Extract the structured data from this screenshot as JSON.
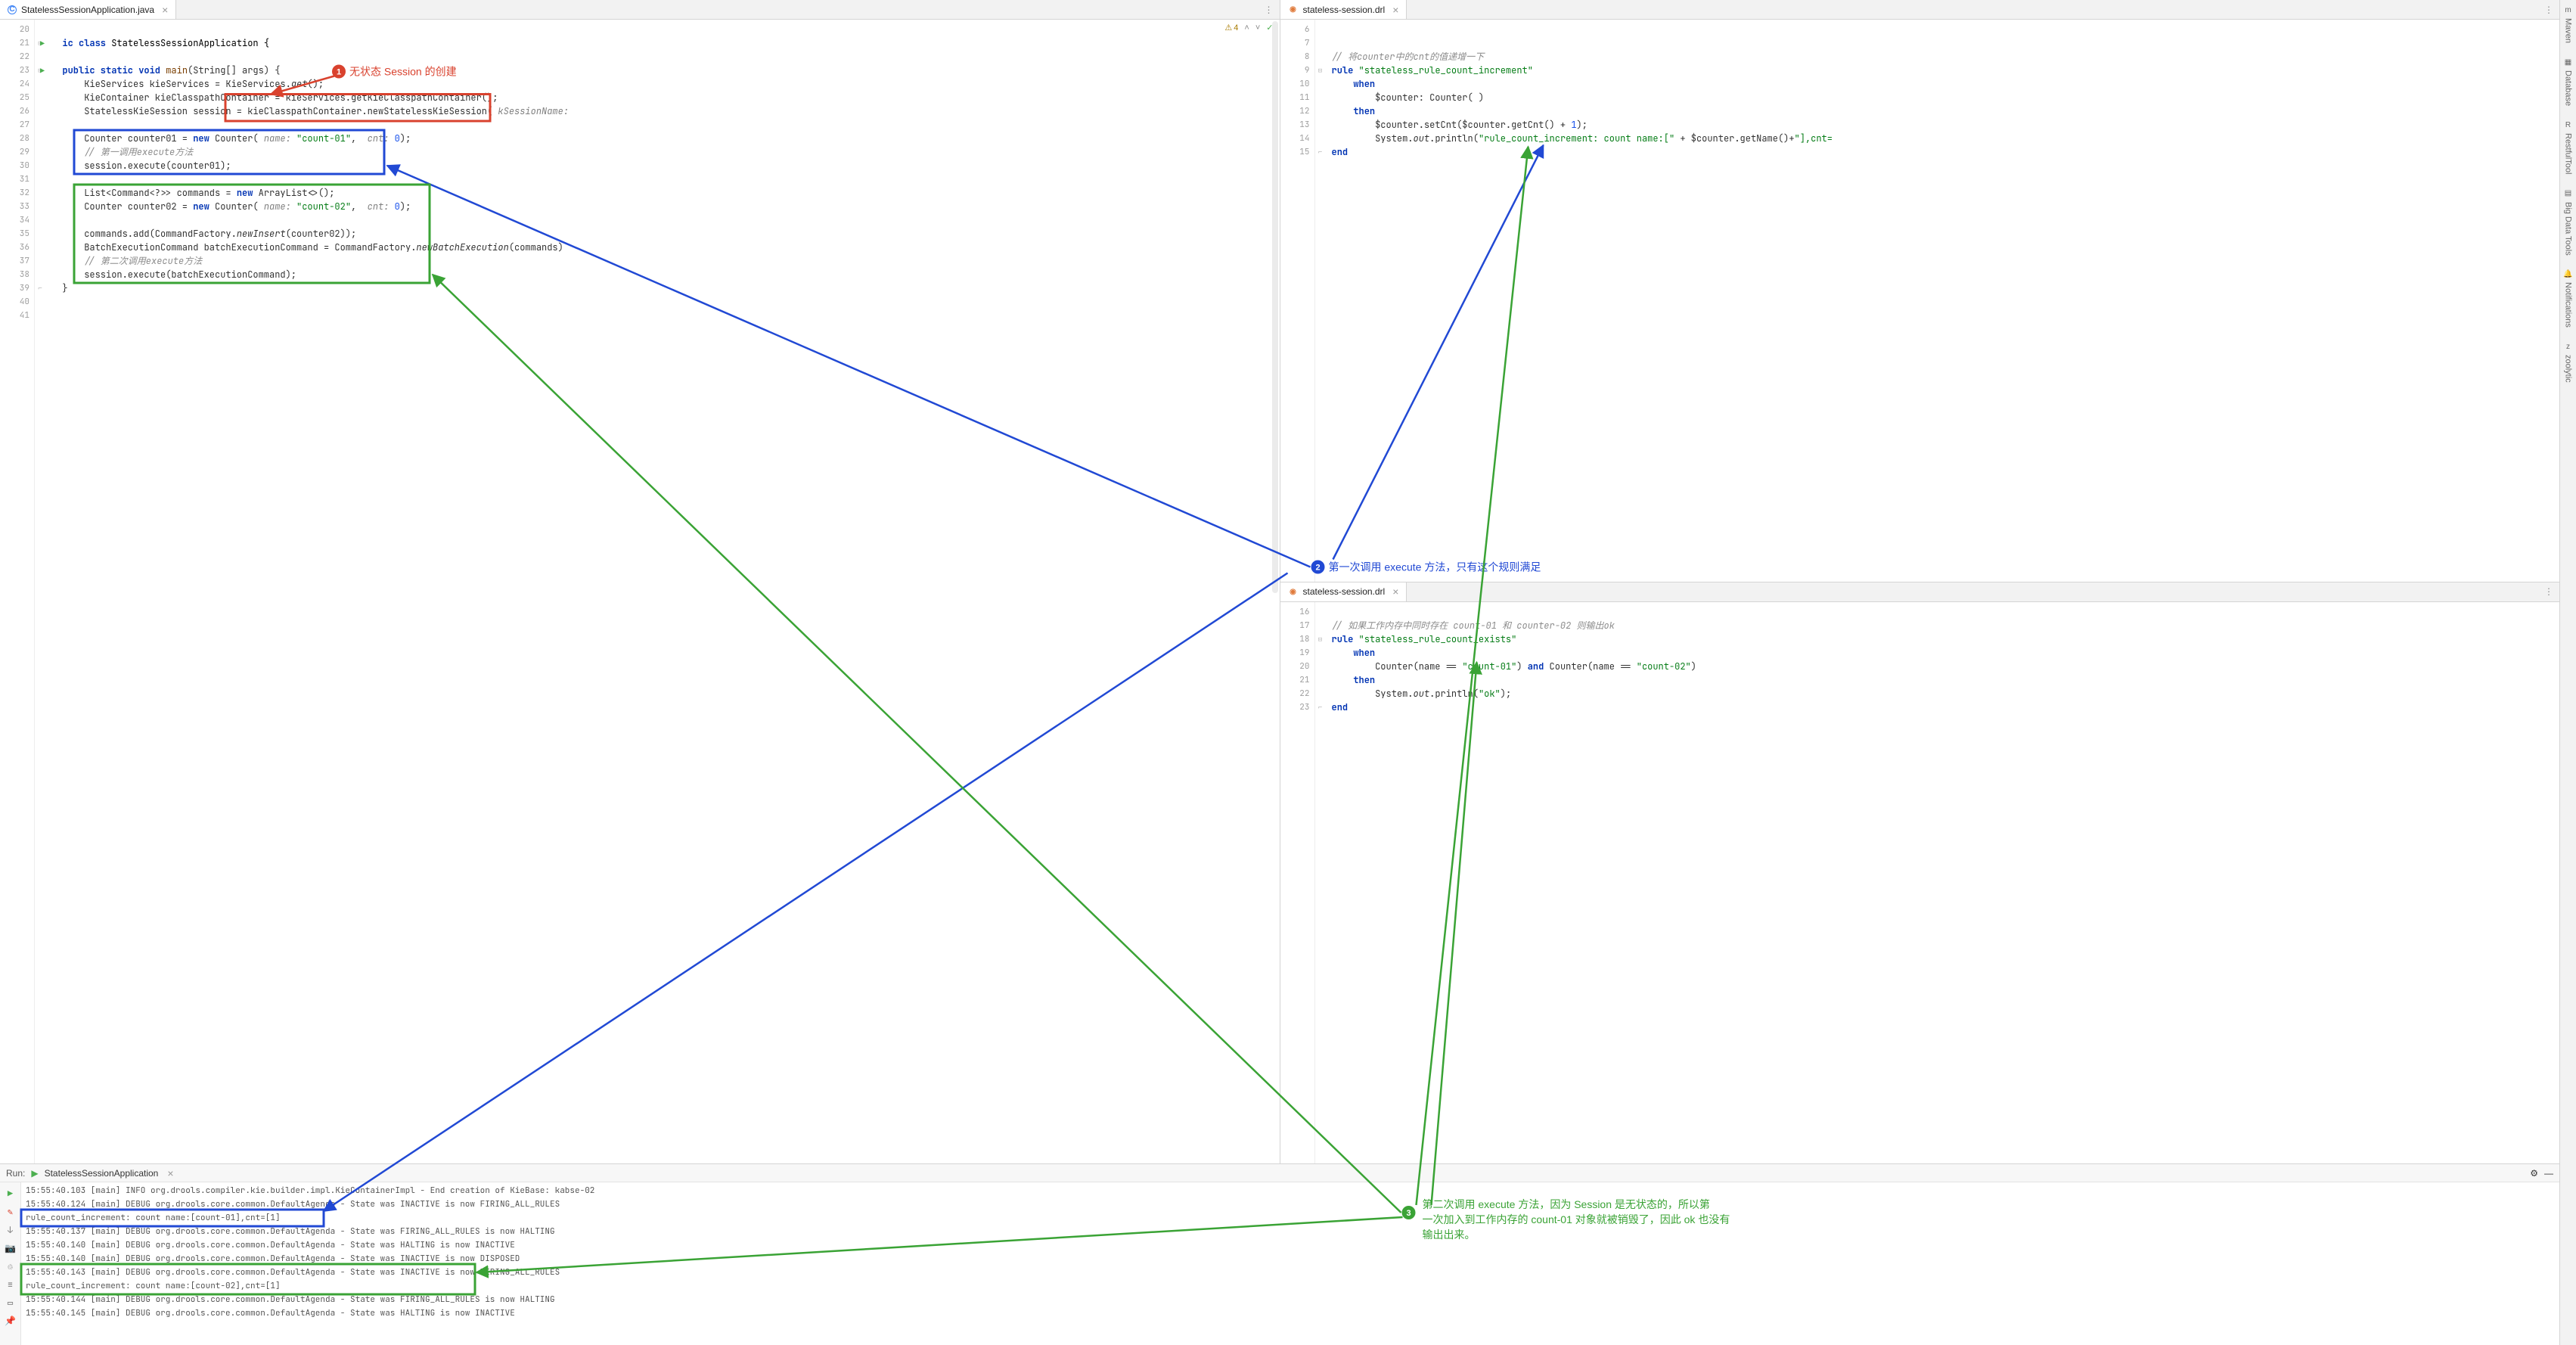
{
  "colors": {
    "annot_red": "#d9422e",
    "annot_blue": "#2149d4",
    "annot_green": "#3aa335",
    "keyword": "#0033b3",
    "string": "#067d17",
    "number": "#1750eb",
    "comment": "#8c8c8c"
  },
  "left_editor": {
    "tab_icon_color": "#3b82f6",
    "tab_icon_letter": "C",
    "tab_title": "StatelessSessionApplication.java",
    "inspections": {
      "warn_count": "4"
    },
    "gutter_start": 20,
    "gutter_end": 41,
    "run_arrows_at": [
      21,
      23
    ],
    "fold_minus_at": [
      21,
      23
    ],
    "fold_end_at": [
      39
    ],
    "lines": {
      "21": [
        {
          "t": "  ",
          "c": ""
        },
        {
          "t": "ic class ",
          "c": "kw"
        },
        {
          "t": "StatelessSessionApplication {",
          "c": "type"
        }
      ],
      "23": [
        {
          "t": "  ",
          "c": ""
        },
        {
          "t": "public static void ",
          "c": "kw"
        },
        {
          "t": "main",
          "c": "fn"
        },
        {
          "t": "(String[] args) {",
          "c": ""
        }
      ],
      "24": [
        {
          "t": "      KieServices kieServices = KieServices.",
          "c": ""
        },
        {
          "t": "get",
          "c": "static-call ital"
        },
        {
          "t": "();",
          "c": ""
        }
      ],
      "25": [
        {
          "t": "      KieContainer kieClasspathContainer = kieServices.getKieClasspathContainer();",
          "c": ""
        }
      ],
      "26": [
        {
          "t": "      StatelessKieSession session = ",
          "c": ""
        },
        {
          "t": "kieClasspathContainer.newStatelessKieSession(",
          "c": ""
        },
        {
          "t": " kSessionName:",
          "c": "param"
        }
      ],
      "28": [
        {
          "t": "      Counter counter01 = ",
          "c": ""
        },
        {
          "t": "new ",
          "c": "kw"
        },
        {
          "t": "Counter( ",
          "c": ""
        },
        {
          "t": "name: ",
          "c": "param"
        },
        {
          "t": "\"count-01\"",
          "c": "str"
        },
        {
          "t": ",  ",
          "c": ""
        },
        {
          "t": "cnt: ",
          "c": "param"
        },
        {
          "t": "0",
          "c": "num"
        },
        {
          "t": ");",
          "c": ""
        }
      ],
      "29": [
        {
          "t": "      ",
          "c": ""
        },
        {
          "t": "// 第一调用execute方法",
          "c": "cmt"
        }
      ],
      "30": [
        {
          "t": "      session.execute(counter01);",
          "c": ""
        }
      ],
      "32": [
        {
          "t": "      List<Command<?>> commands = ",
          "c": ""
        },
        {
          "t": "new ",
          "c": "kw"
        },
        {
          "t": "ArrayList<>();",
          "c": ""
        }
      ],
      "33": [
        {
          "t": "      Counter counter02 = ",
          "c": ""
        },
        {
          "t": "new ",
          "c": "kw"
        },
        {
          "t": "Counter( ",
          "c": ""
        },
        {
          "t": "name: ",
          "c": "param"
        },
        {
          "t": "\"count-02\"",
          "c": "str"
        },
        {
          "t": ",  ",
          "c": ""
        },
        {
          "t": "cnt: ",
          "c": "param"
        },
        {
          "t": "0",
          "c": "num"
        },
        {
          "t": ");",
          "c": ""
        }
      ],
      "35": [
        {
          "t": "      commands.add(CommandFactory.",
          "c": ""
        },
        {
          "t": "newInsert",
          "c": "static-call ital"
        },
        {
          "t": "(counter02));",
          "c": ""
        }
      ],
      "36": [
        {
          "t": "      BatchExecutionCommand batchExecutionCommand = CommandFactory.",
          "c": ""
        },
        {
          "t": "newBatchExecution",
          "c": "static-call ital"
        },
        {
          "t": "(commands)",
          "c": ""
        }
      ],
      "37": [
        {
          "t": "      ",
          "c": ""
        },
        {
          "t": "// 第二次调用execute方法",
          "c": "cmt"
        }
      ],
      "38": [
        {
          "t": "      session.execute(batchExecutionCommand);",
          "c": ""
        }
      ],
      "39": [
        {
          "t": "  }",
          "c": ""
        }
      ]
    }
  },
  "right_top": {
    "tab_title": "stateless-session.drl",
    "gutter_start": 6,
    "gutter_end": 15,
    "lines": {
      "8": [
        {
          "t": "// 将counter中的cnt的值递增一下",
          "c": "cmt"
        }
      ],
      "9": [
        {
          "t": "rule ",
          "c": "kw"
        },
        {
          "t": "\"stateless_rule_count_increment\"",
          "c": "str"
        }
      ],
      "10": [
        {
          "t": "    ",
          "c": ""
        },
        {
          "t": "when",
          "c": "kw"
        }
      ],
      "11": [
        {
          "t": "        $counter: Counter( )",
          "c": ""
        }
      ],
      "12": [
        {
          "t": "    ",
          "c": ""
        },
        {
          "t": "then",
          "c": "kw"
        }
      ],
      "13": [
        {
          "t": "        $counter.setCnt($counter.getCnt() + ",
          "c": ""
        },
        {
          "t": "1",
          "c": "num"
        },
        {
          "t": ");",
          "c": ""
        }
      ],
      "14": [
        {
          "t": "        System.",
          "c": ""
        },
        {
          "t": "out",
          "c": "ital"
        },
        {
          "t": ".println(",
          "c": ""
        },
        {
          "t": "\"rule_count_increment: count name:[\"",
          "c": "str"
        },
        {
          "t": " + $counter.getName()+",
          "c": ""
        },
        {
          "t": "\"],cnt=",
          "c": "str"
        }
      ],
      "15": [
        {
          "t": "end",
          "c": "kw"
        }
      ]
    }
  },
  "right_bottom": {
    "tab_title": "stateless-session.drl",
    "gutter_start": 16,
    "gutter_end": 23,
    "lines": {
      "17": [
        {
          "t": "// 如果工作内存中同时存在 count-01 和 counter-02 则输出ok",
          "c": "cmt"
        }
      ],
      "18": [
        {
          "t": "rule ",
          "c": "kw"
        },
        {
          "t": "\"stateless_rule_count_exists\"",
          "c": "str"
        }
      ],
      "19": [
        {
          "t": "    ",
          "c": ""
        },
        {
          "t": "when",
          "c": "kw"
        }
      ],
      "20": [
        {
          "t": "        Counter(name == ",
          "c": ""
        },
        {
          "t": "\"count-01\"",
          "c": "str"
        },
        {
          "t": ") ",
          "c": ""
        },
        {
          "t": "and",
          "c": "kw"
        },
        {
          "t": " Counter(name == ",
          "c": ""
        },
        {
          "t": "\"count-02\"",
          "c": "str"
        },
        {
          "t": ")",
          "c": ""
        }
      ],
      "21": [
        {
          "t": "    ",
          "c": ""
        },
        {
          "t": "then",
          "c": "kw"
        }
      ],
      "22": [
        {
          "t": "        System.",
          "c": ""
        },
        {
          "t": "out",
          "c": "ital"
        },
        {
          "t": ".println(",
          "c": ""
        },
        {
          "t": "\"ok\"",
          "c": "str"
        },
        {
          "t": ");",
          "c": ""
        }
      ],
      "23": [
        {
          "t": "end",
          "c": "kw"
        }
      ]
    }
  },
  "run": {
    "header_label": "Run:",
    "config_name": "StatelessSessionApplication",
    "console": [
      "15:55:40.103 [main] INFO org.drools.compiler.kie.builder.impl.KieContainerImpl - End creation of KieBase: kabse-02",
      "15:55:40.124 [main] DEBUG org.drools.core.common.DefaultAgenda - State was INACTIVE is now FIRING_ALL_RULES",
      "rule_count_increment: count name:[count-01],cnt=[1]",
      "15:55:40.137 [main] DEBUG org.drools.core.common.DefaultAgenda - State was FIRING_ALL_RULES is now HALTING",
      "15:55:40.140 [main] DEBUG org.drools.core.common.DefaultAgenda - State was HALTING is now INACTIVE",
      "15:55:40.140 [main] DEBUG org.drools.core.common.DefaultAgenda - State was INACTIVE is now DISPOSED",
      "15:55:40.143 [main] DEBUG org.drools.core.common.DefaultAgenda - State was INACTIVE is now FIRING_ALL_RULES",
      "rule_count_increment: count name:[count-02],cnt=[1]",
      "15:55:40.144 [main] DEBUG org.drools.core.common.DefaultAgenda - State was FIRING_ALL_RULES is now HALTING",
      "15:55:40.145 [main] DEBUG org.drools.core.common.DefaultAgenda - State was HALTING is now INACTIVE"
    ]
  },
  "annotations": {
    "1": {
      "label": "1",
      "text": "无状态 Session 的创建",
      "color": "#d9422e"
    },
    "2": {
      "label": "2",
      "text": "第一次调用 execute 方法，只有这个规则满足",
      "color": "#2149d4"
    },
    "3": {
      "label": "3",
      "text": "第二次调用 execute 方法，因为 Session 是无状态的，所以第一次加入到工作内存的 count-01 对象就被销毁了，因此 ok 也没有输出出来。",
      "color": "#3aa335"
    }
  },
  "right_rail": [
    {
      "icon": "m",
      "label": "Maven"
    },
    {
      "icon": "▦",
      "label": "Database"
    },
    {
      "icon": "R",
      "label": "RestfulTool"
    },
    {
      "icon": "▤",
      "label": "Big Data Tools"
    },
    {
      "icon": "🔔",
      "label": "Notifications"
    },
    {
      "icon": "z",
      "label": "zoolytic"
    }
  ],
  "chevrons": {
    "up": "˄",
    "down": "˅",
    "check": "✓",
    "more": "⋮",
    "gear": "⚙",
    "close": "×",
    "collapse": "—"
  }
}
